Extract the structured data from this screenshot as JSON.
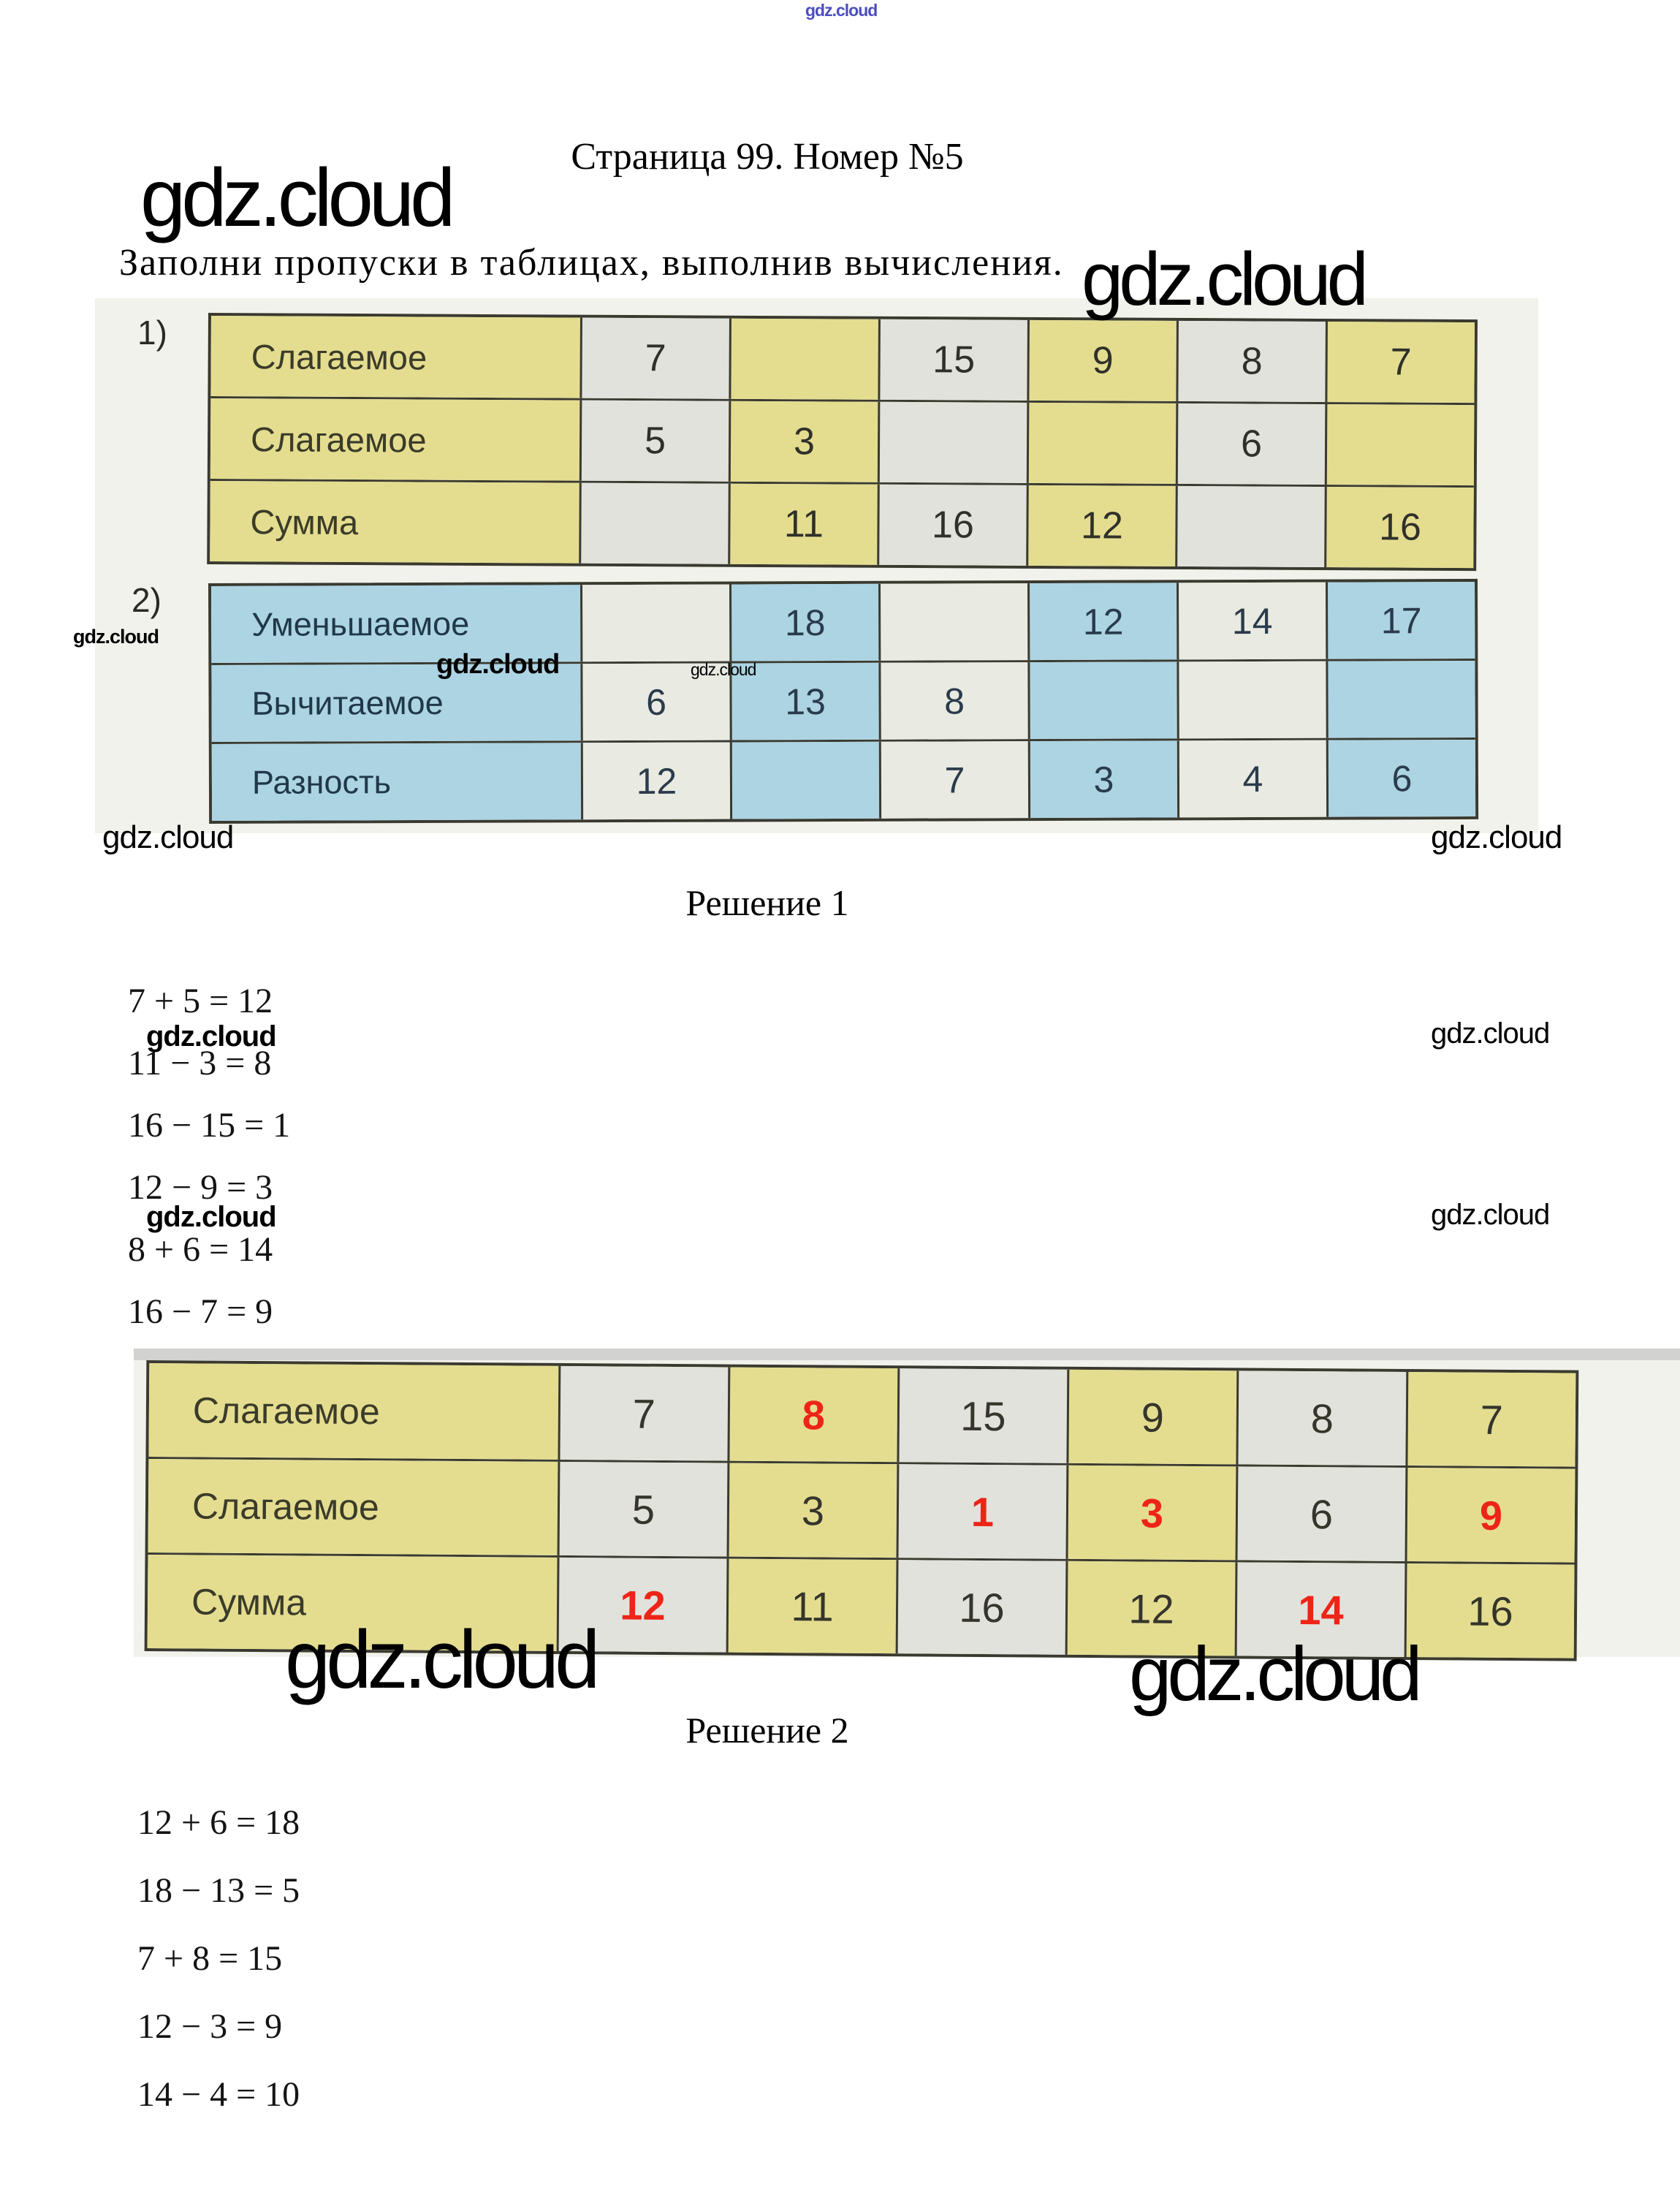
{
  "watermarks": {
    "brand": "gdz.cloud"
  },
  "header": {
    "title": "Страница 99. Номер №5",
    "instruction": "Заполни пропуски в таблицах, выполнив вычисления."
  },
  "problem": {
    "table1": {
      "index": "1)",
      "rows": [
        {
          "label": "Слагаемое",
          "cells": [
            "7",
            "",
            "15",
            "9",
            "8",
            "7"
          ]
        },
        {
          "label": "Слагаемое",
          "cells": [
            "5",
            "3",
            "",
            "",
            "6",
            ""
          ]
        },
        {
          "label": "Сумма",
          "cells": [
            "",
            "11",
            "16",
            "12",
            "",
            "16"
          ]
        }
      ]
    },
    "table2": {
      "index": "2)",
      "rows": [
        {
          "label": "Уменьшаемое",
          "cells": [
            "",
            "18",
            "",
            "12",
            "14",
            "17"
          ]
        },
        {
          "label": "Вычитаемое",
          "cells": [
            "6",
            "13",
            "8",
            "",
            "",
            ""
          ]
        },
        {
          "label": "Разность",
          "cells": [
            "12",
            "",
            "7",
            "3",
            "4",
            "6"
          ]
        }
      ]
    }
  },
  "solution1": {
    "heading": "Решение 1",
    "equations": [
      "7 + 5 = 12",
      "11 − 3 = 8",
      "16 − 15 = 1",
      "12 − 9 = 3",
      "8 + 6 = 14",
      "16 − 7 = 9"
    ],
    "table": {
      "rows": [
        {
          "label": "Слагаемое",
          "cells": [
            {
              "v": "7"
            },
            {
              "v": "8",
              "answer": true
            },
            {
              "v": "15"
            },
            {
              "v": "9"
            },
            {
              "v": "8"
            },
            {
              "v": "7"
            }
          ]
        },
        {
          "label": "Слагаемое",
          "cells": [
            {
              "v": "5"
            },
            {
              "v": "3"
            },
            {
              "v": "1",
              "answer": true
            },
            {
              "v": "3",
              "answer": true
            },
            {
              "v": "6"
            },
            {
              "v": "9",
              "answer": true
            }
          ]
        },
        {
          "label": "Сумма",
          "cells": [
            {
              "v": "12",
              "answer": true
            },
            {
              "v": "11"
            },
            {
              "v": "16"
            },
            {
              "v": "12"
            },
            {
              "v": "14",
              "answer": true
            },
            {
              "v": "16"
            }
          ]
        }
      ]
    }
  },
  "solution2": {
    "heading": "Решение 2",
    "equations": [
      "12 + 6 = 18",
      "18 − 13 = 5",
      "7 + 8 = 15",
      "12 − 3 = 9",
      "14 − 4 = 10"
    ]
  },
  "colors": {
    "t1_yellow": "#e4dd90",
    "t1_gray": "#e1e2db",
    "t2_blue": "#acd4e3",
    "t2_light": "#e9eae1",
    "border": "#3a3a30",
    "answer_red": "#ee2417",
    "watermark_purple": "#4c4cc0"
  }
}
